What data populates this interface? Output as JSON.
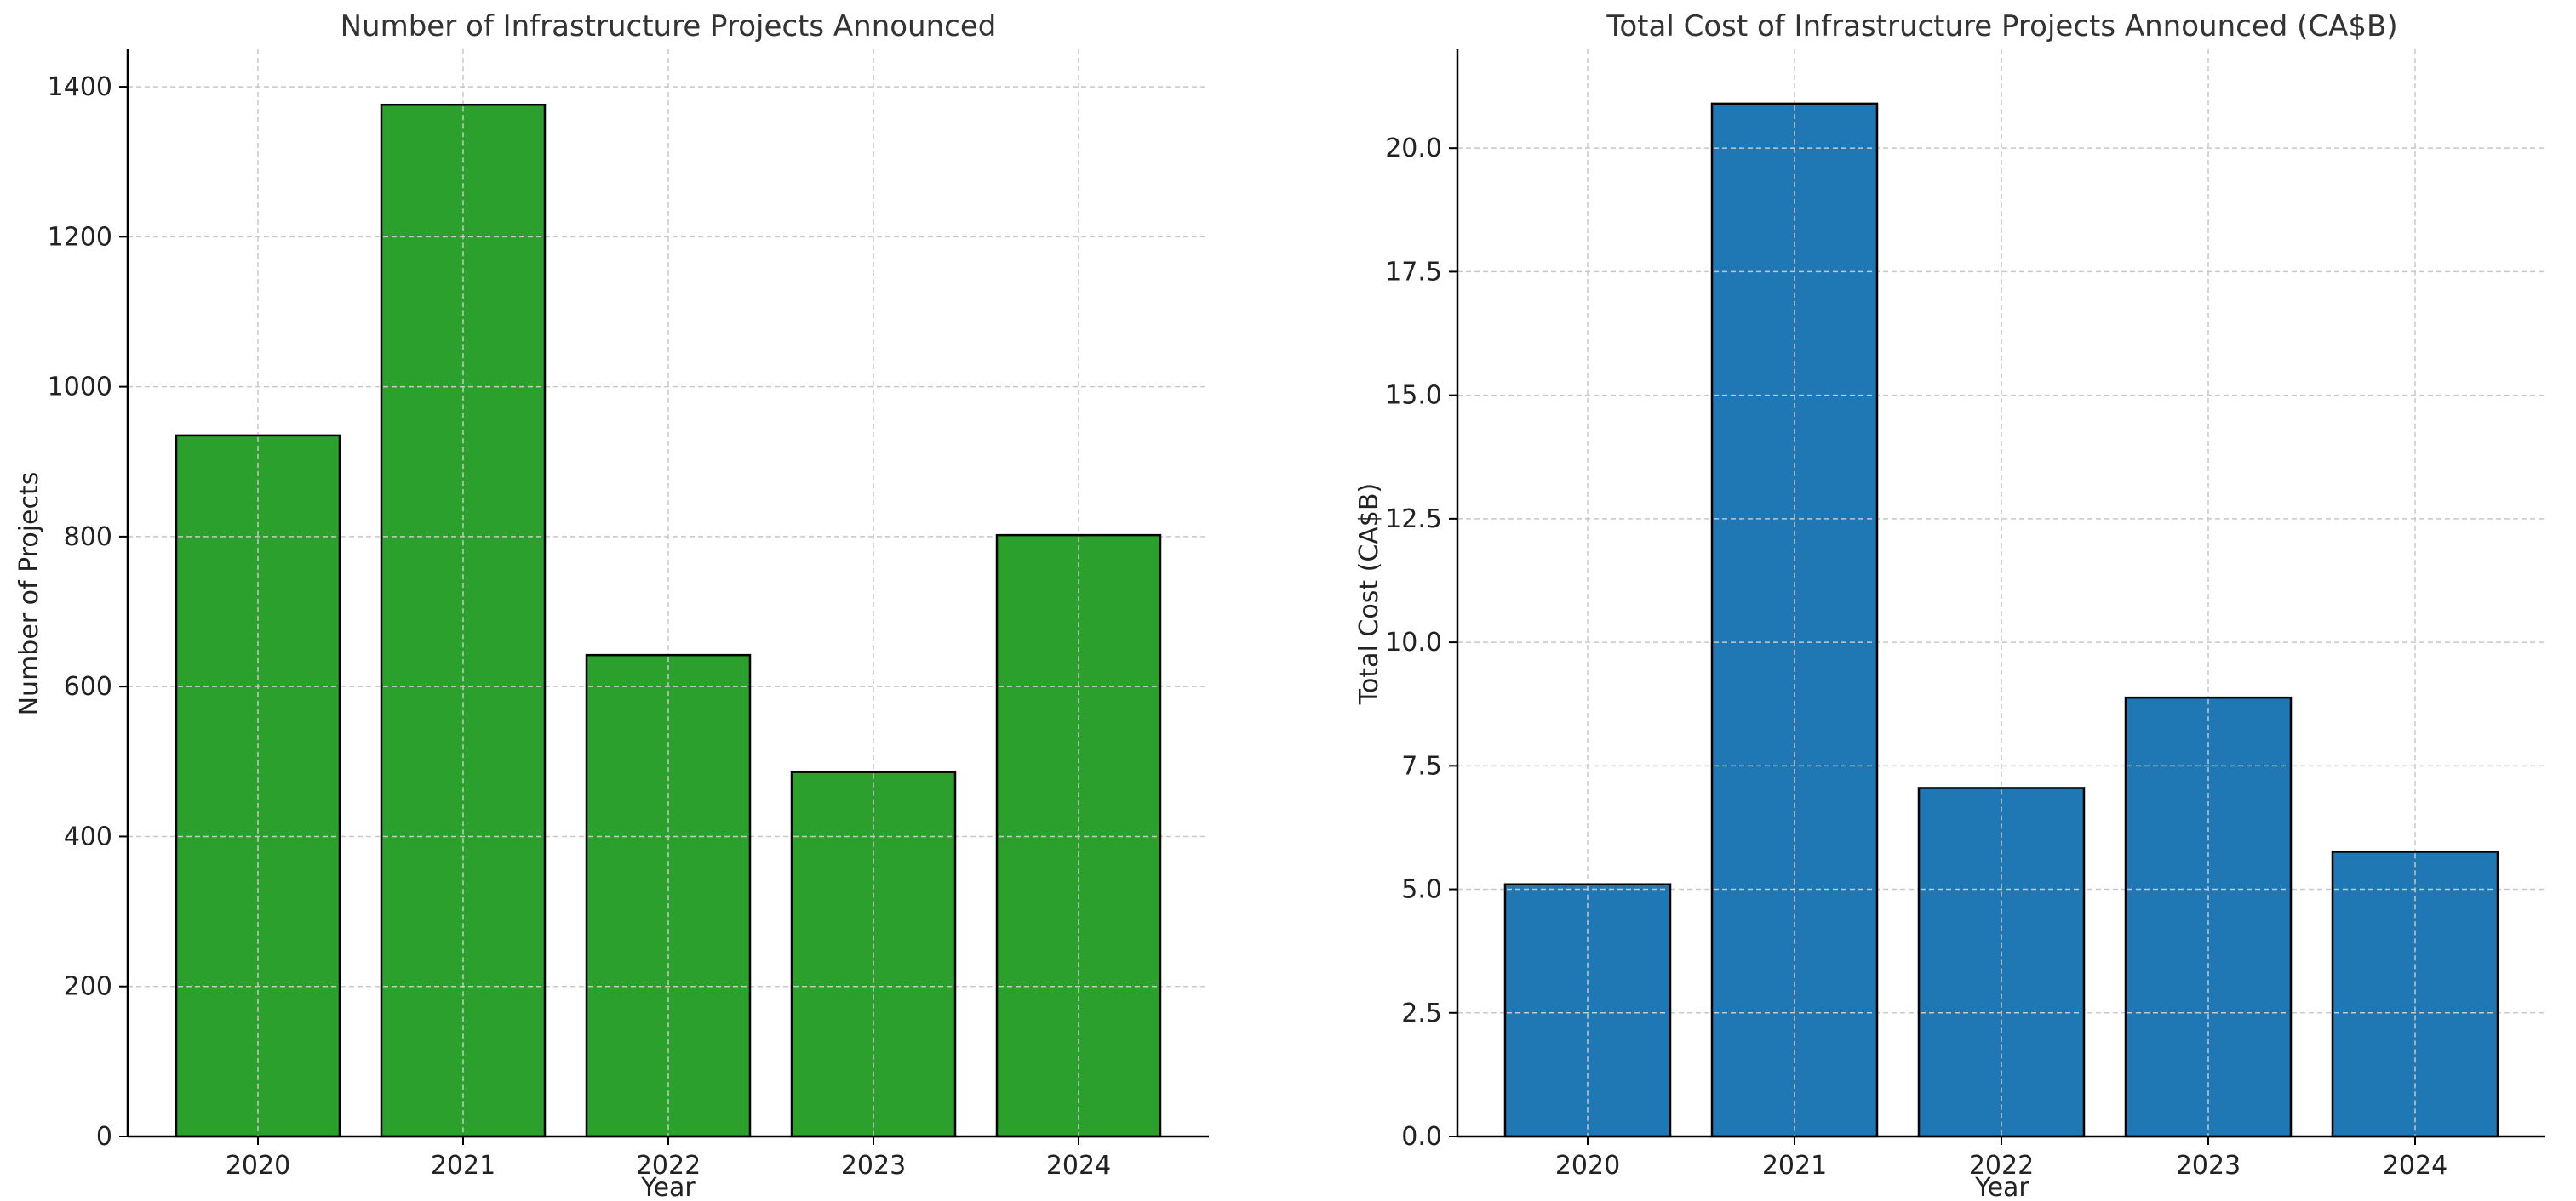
{
  "chart_data": [
    {
      "type": "bar",
      "title": "Number of Infrastructure Projects Announced",
      "xlabel": "Year",
      "ylabel": "Number of Projects",
      "categories": [
        "2020",
        "2021",
        "2022",
        "2023",
        "2024"
      ],
      "values": [
        935,
        1376,
        642,
        486,
        802
      ],
      "ylim": [
        0,
        1450
      ],
      "yticks": [
        0,
        200,
        400,
        600,
        800,
        1000,
        1200,
        1400
      ],
      "ytick_labels": [
        "0",
        "200",
        "400",
        "600",
        "800",
        "1000",
        "1200",
        "1400"
      ],
      "color": "#2ca02c",
      "grid": true
    },
    {
      "type": "bar",
      "title": "Total Cost of Infrastructure Projects Announced (CA$B)",
      "xlabel": "Year",
      "ylabel": "Total Cost (CA$B)",
      "categories": [
        "2020",
        "2021",
        "2022",
        "2023",
        "2024"
      ],
      "values": [
        5.1,
        20.9,
        7.05,
        8.88,
        5.76
      ],
      "ylim": [
        0,
        22
      ],
      "yticks": [
        0,
        2.5,
        5,
        7.5,
        10,
        12.5,
        15,
        17.5,
        20
      ],
      "ytick_labels": [
        "0.0",
        "2.5",
        "5.0",
        "7.5",
        "10.0",
        "12.5",
        "15.0",
        "17.5",
        "20.0"
      ],
      "color": "#1f77b4",
      "grid": true
    }
  ]
}
